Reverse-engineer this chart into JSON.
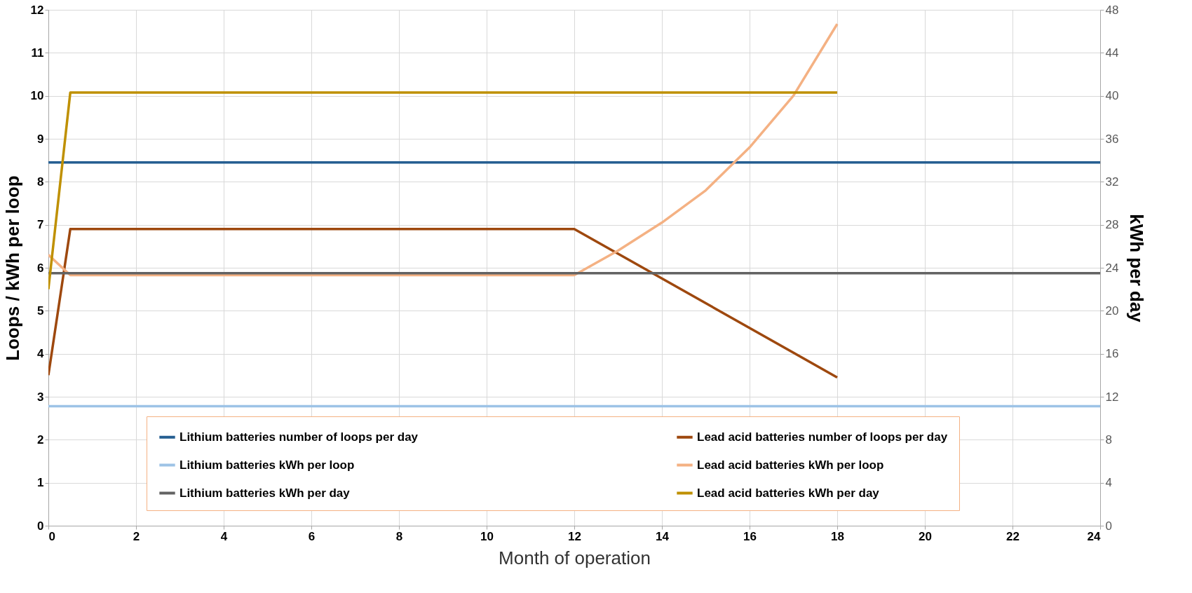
{
  "chart_data": {
    "type": "line",
    "xlabel": "Month of operation",
    "ylabel": "Loops / kWh per loop",
    "y2label": "kWh per day",
    "xlim": [
      0,
      24
    ],
    "xticks": [
      0,
      2,
      4,
      6,
      8,
      10,
      12,
      14,
      16,
      18,
      20,
      22,
      24
    ],
    "ylim": [
      0,
      12
    ],
    "yticks": [
      0,
      1,
      2,
      3,
      4,
      5,
      6,
      7,
      8,
      9,
      10,
      11,
      12
    ],
    "y2lim": [
      0,
      48
    ],
    "y2ticks": [
      0,
      4,
      8,
      12,
      16,
      20,
      24,
      28,
      32,
      36,
      40,
      44,
      48
    ],
    "grid": true,
    "legend": "bottom",
    "marker": "none",
    "line_style": "solid",
    "series": [
      {
        "name": "Lithium batteries number of loops per day",
        "color": "#255e91",
        "x": [
          0,
          24
        ],
        "values": [
          8.45,
          8.45
        ]
      },
      {
        "name": "Lithium batteries kWh per loop",
        "color": "#9dc3e6",
        "x": [
          0,
          24
        ],
        "values": [
          2.78,
          2.78
        ]
      },
      {
        "name": "Lithium batteries kWh per day",
        "color": "#636363",
        "axis": "y2",
        "x": [
          0,
          24
        ],
        "values": [
          23.5,
          23.5
        ]
      },
      {
        "name": "Lead acid batteries number of loops per day",
        "color": "#9e480e",
        "x": [
          0,
          0.5,
          12,
          18
        ],
        "values": [
          3.5,
          6.9,
          6.9,
          3.45
        ]
      },
      {
        "name": "Lead acid batteries kWh per loop",
        "color": "#f4b183",
        "x": [
          0,
          0.5,
          12,
          13,
          14,
          15,
          16,
          17,
          18
        ],
        "values": [
          6.3,
          5.83,
          5.83,
          6.4,
          7.05,
          7.8,
          8.8,
          10.0,
          11.67
        ]
      },
      {
        "name": "Lead acid batteries kWh per day",
        "color": "#bf9000",
        "axis": "y2",
        "x": [
          0,
          0.5,
          18
        ],
        "values": [
          22,
          40.3,
          40.3
        ]
      }
    ]
  }
}
